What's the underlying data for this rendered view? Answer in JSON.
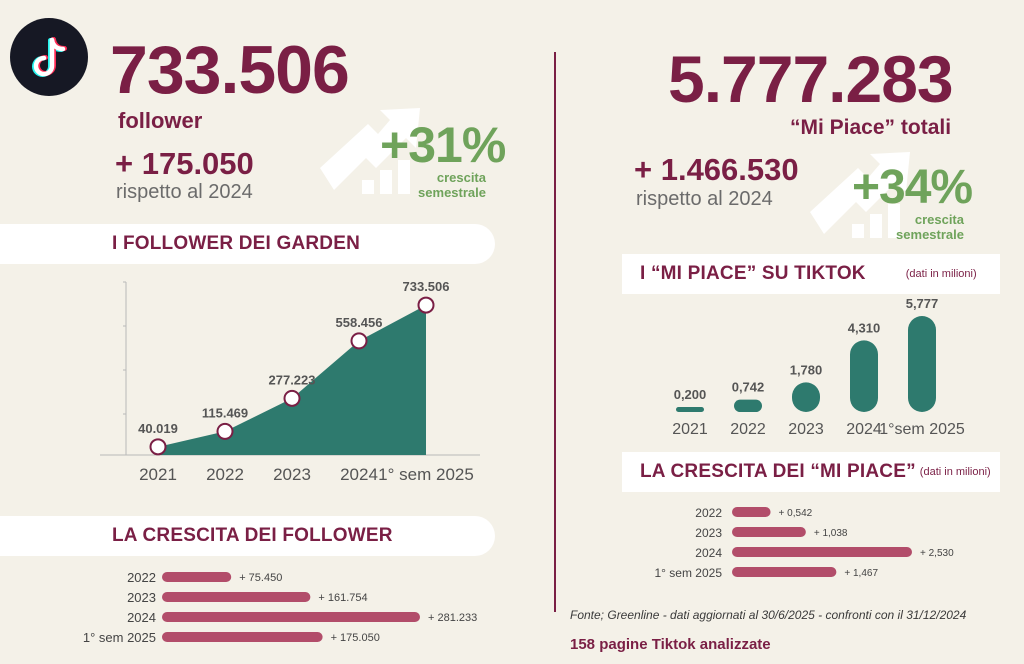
{
  "colors": {
    "maroon": "#7a1f45",
    "teal": "#2e7a6e",
    "green": "#6fa35b",
    "bar": "#b24d6a",
    "bg": "#f4f1e8"
  },
  "logo": {
    "icon": "tiktok-icon"
  },
  "followers": {
    "total": "733.506",
    "label": "follower",
    "delta": "+ 175.050",
    "delta_label": "rispetto al 2024",
    "growth": "+31%",
    "growth_label_1": "crescita",
    "growth_label_2": "semestrale"
  },
  "likes": {
    "total": "5.777.283",
    "label": "“Mi Piace” totali",
    "delta": "+ 1.466.530",
    "delta_label": "rispetto al 2024",
    "growth": "+34%",
    "growth_label_1": "crescita",
    "growth_label_2": "semestrale"
  },
  "sections": {
    "followers_chart": "I FOLLOWER DEI GARDEN",
    "followers_growth": "LA CRESCITA DEI FOLLOWER",
    "likes_chart": "I “MI PIACE” SU TIKTOK",
    "likes_chart_note": "(dati in milioni)",
    "likes_growth": "LA CRESCITA DEI “MI PIACE”",
    "likes_growth_note": "(dati in milioni)"
  },
  "footer": {
    "source": "Fonte; Greenline - dati aggiornati al 30/6/2025 - confronti con il 31/12/2024",
    "pages": "158 pagine Tiktok analizzate"
  },
  "chart_data": [
    {
      "type": "area",
      "categories": [
        "2021",
        "2022",
        "2023",
        "2024",
        "1° sem 2025"
      ],
      "values": [
        40019,
        115469,
        277223,
        558456,
        733506
      ],
      "labels": [
        "40.019",
        "115.469",
        "277.223",
        "558.456",
        "733.506"
      ],
      "title": "I FOLLOWER DEI GARDEN",
      "ylim": [
        0,
        800000
      ]
    },
    {
      "type": "bar",
      "orientation": "horizontal",
      "categories": [
        "2022",
        "2023",
        "2024",
        "1° sem 2025"
      ],
      "values": [
        75450,
        161754,
        281233,
        175050
      ],
      "labels": [
        "+ 75.450",
        "+ 161.754",
        "+ 281.233",
        "+ 175.050"
      ],
      "title": "LA CRESCITA DEI FOLLOWER"
    },
    {
      "type": "bar",
      "categories": [
        "2021",
        "2022",
        "2023",
        "2024",
        "1°sem 2025"
      ],
      "values": [
        0.2,
        0.742,
        1.78,
        4.31,
        5.777
      ],
      "labels": [
        "0,200",
        "0,742",
        "1,780",
        "4,310",
        "5,777"
      ],
      "title": "I “MI PIACE” SU TIKTOK"
    },
    {
      "type": "bar",
      "orientation": "horizontal",
      "categories": [
        "2022",
        "2023",
        "2024",
        "1° sem 2025"
      ],
      "values": [
        0.542,
        1.038,
        2.53,
        1.467
      ],
      "labels": [
        "+ 0,542",
        "+ 1,038",
        "+ 2,530",
        "+ 1,467"
      ],
      "title": "LA CRESCITA DEI “MI PIACE”"
    }
  ]
}
